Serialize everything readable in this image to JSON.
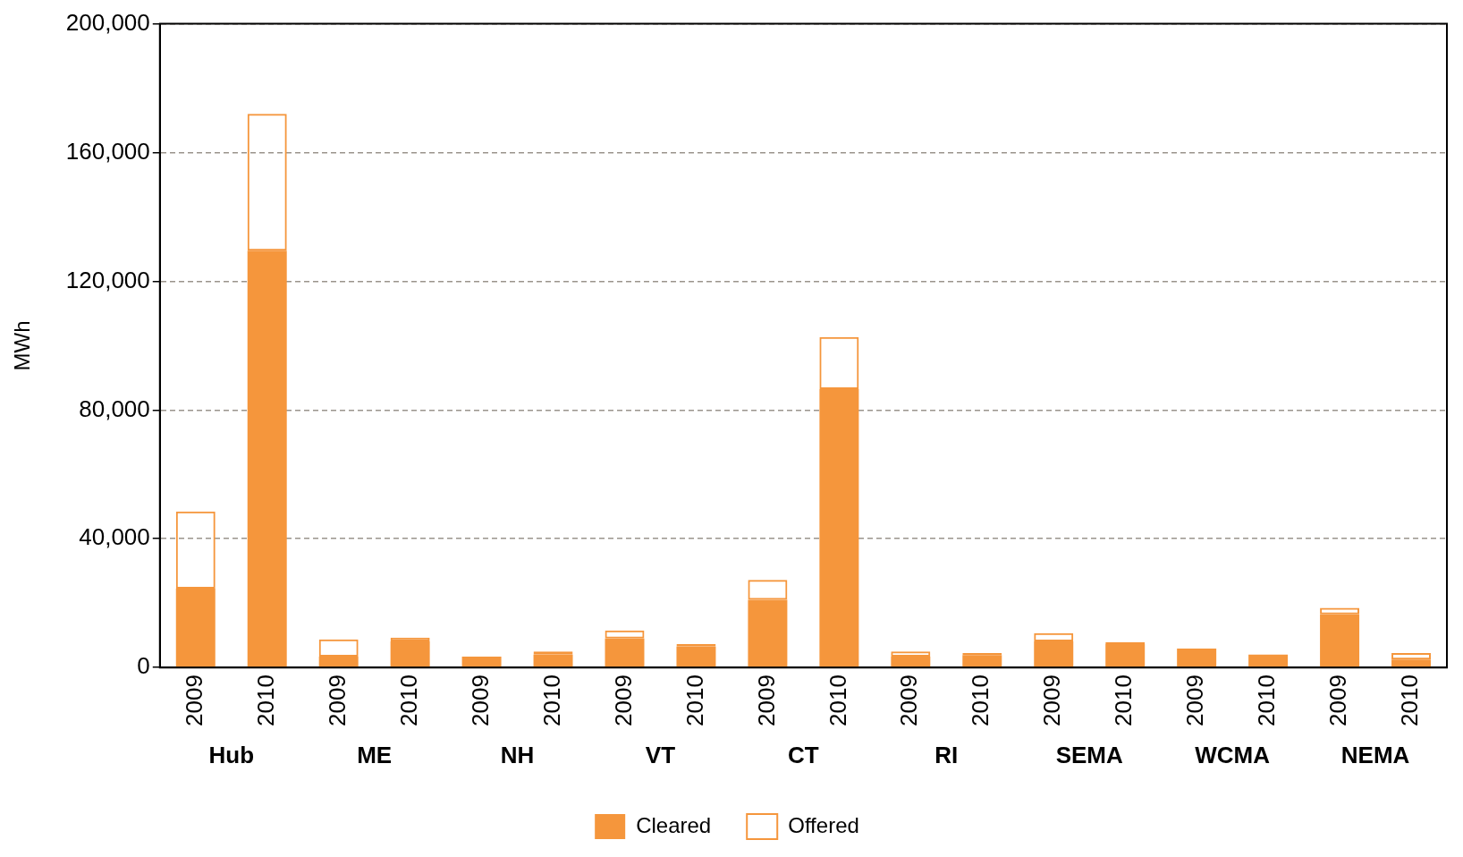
{
  "chart_data": {
    "type": "bar",
    "ylabel": "MWh",
    "categories": [
      "2009",
      "2010",
      "2009",
      "2010",
      "2009",
      "2010",
      "2009",
      "2010",
      "2009",
      "2010",
      "2009",
      "2010",
      "2009",
      "2010",
      "2009",
      "2010",
      "2009",
      "2010"
    ],
    "annotations": [
      "Hub",
      "ME",
      "NH",
      "VT",
      "CT",
      "RI",
      "SEMA",
      "WCMA",
      "NEMA"
    ],
    "stacked": true,
    "series": [
      {
        "name": "Cleared",
        "color": "#f5963c",
        "values": [
          24500,
          129500,
          3400,
          8100,
          3400,
          4000,
          9000,
          6500,
          21000,
          86500,
          3400,
          3900,
          8100,
          7300,
          5900,
          4000,
          16500,
          2500
        ]
      },
      {
        "name": "Offered",
        "color": "#f5963c",
        "values": [
          24000,
          42500,
          5300,
          1200,
          null,
          1000,
          2500,
          800,
          6200,
          16200,
          1600,
          600,
          2600,
          600,
          null,
          null,
          2000,
          2000
        ]
      }
    ],
    "ylim": [
      0,
      200000
    ],
    "yticks": [
      0,
      {
        "value": 40000,
        "label": "40,000"
      },
      {
        "value": 80000,
        "label": "80,000"
      },
      {
        "value": 120000,
        "label": "120,000"
      },
      {
        "value": 160000,
        "label": "160,000"
      },
      {
        "value": 200000,
        "label": "200,000"
      }
    ],
    "grid": "y",
    "legend": "bottom"
  }
}
